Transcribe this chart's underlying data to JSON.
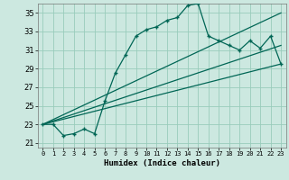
{
  "xlabel": "Humidex (Indice chaleur)",
  "xlim": [
    -0.5,
    23.5
  ],
  "ylim": [
    20.5,
    36.0
  ],
  "xticks": [
    0,
    1,
    2,
    3,
    4,
    5,
    6,
    7,
    8,
    9,
    10,
    11,
    12,
    13,
    14,
    15,
    16,
    17,
    18,
    19,
    20,
    21,
    22,
    23
  ],
  "yticks": [
    21,
    23,
    25,
    27,
    29,
    31,
    33,
    35
  ],
  "bg_color": "#cce8e0",
  "grid_color": "#99ccbb",
  "line_color": "#006655",
  "main_line_x": [
    0,
    1,
    2,
    3,
    4,
    5,
    6,
    7,
    8,
    9,
    10,
    11,
    12,
    13,
    14,
    15,
    16,
    17,
    18,
    19,
    20,
    21,
    22,
    23
  ],
  "main_line_y": [
    23.0,
    23.0,
    21.8,
    22.0,
    22.5,
    22.0,
    25.5,
    28.5,
    30.5,
    32.5,
    33.2,
    33.5,
    34.2,
    34.5,
    35.8,
    36.0,
    32.5,
    32.0,
    31.5,
    31.0,
    32.0,
    31.2,
    32.5,
    29.5
  ],
  "trend1_x": [
    0,
    23
  ],
  "trend1_y": [
    23.0,
    29.5
  ],
  "trend2_x": [
    0,
    23
  ],
  "trend2_y": [
    23.0,
    31.5
  ],
  "trend3_x": [
    0,
    23
  ],
  "trend3_y": [
    23.0,
    35.0
  ]
}
